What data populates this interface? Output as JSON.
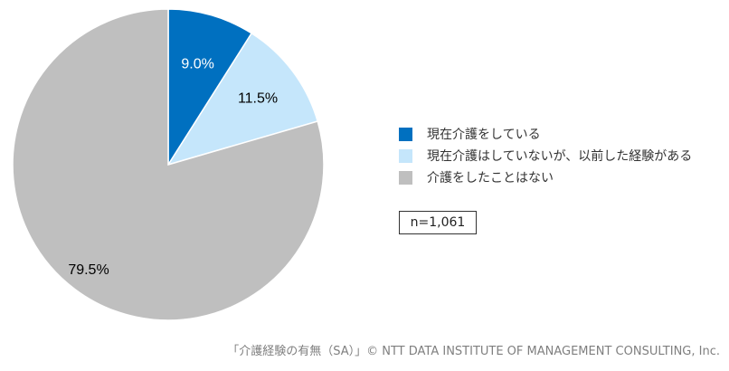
{
  "chart_data": {
    "type": "pie",
    "slices": [
      {
        "label": "現在介護をしている",
        "value": 9.0,
        "data_label": "9.0%",
        "color": "#0070C0",
        "label_color": "#ffffff"
      },
      {
        "label": "現在介護はしていないが、以前した経験がある",
        "value": 11.5,
        "data_label": "11.5%",
        "color": "#C5E6FB",
        "label_color": "#000000"
      },
      {
        "label": "介護をしたことはない",
        "value": 79.5,
        "data_label": "79.5%",
        "color": "#BFBFBF",
        "label_color": "#000000"
      }
    ],
    "start_angle": "12 o'clock",
    "direction": "clockwise",
    "legend_position": "right"
  },
  "sample_size": "n=1,061",
  "source": "「介護経験の有無（SA）」© NTT DATA INSTITUTE OF MANAGEMENT CONSULTING, Inc."
}
